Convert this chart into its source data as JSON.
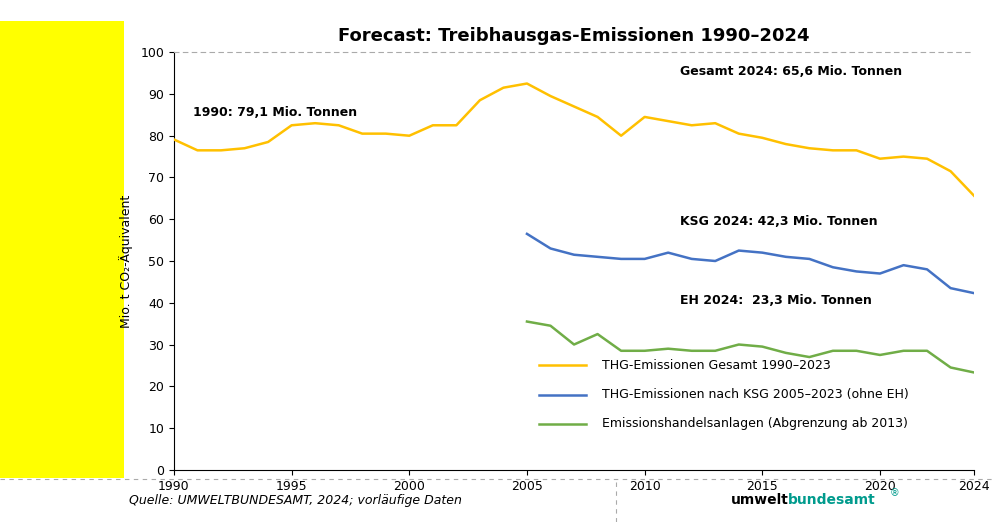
{
  "title": "Forecast: Treibhausgas-Emissionen 1990–2024",
  "ylabel": "Mio. t CO₂-Äquivalent",
  "source_text": "Quelle: UMWELTBUNDESAMT, 2024; vorläufige Daten",
  "gesamt_years": [
    1990,
    1991,
    1992,
    1993,
    1994,
    1995,
    1996,
    1997,
    1998,
    1999,
    2000,
    2001,
    2002,
    2003,
    2004,
    2005,
    2006,
    2007,
    2008,
    2009,
    2010,
    2011,
    2012,
    2013,
    2014,
    2015,
    2016,
    2017,
    2018,
    2019,
    2020,
    2021,
    2022,
    2023,
    2024
  ],
  "gesamt_values": [
    79.1,
    76.5,
    76.5,
    77.0,
    78.5,
    82.5,
    83.0,
    82.5,
    80.5,
    80.5,
    80.0,
    82.5,
    82.5,
    88.5,
    91.5,
    92.5,
    89.5,
    87.0,
    84.5,
    80.0,
    84.5,
    83.5,
    82.5,
    83.0,
    80.5,
    79.5,
    78.0,
    77.0,
    76.5,
    76.5,
    74.5,
    75.0,
    74.5,
    71.5,
    65.6
  ],
  "ksg_years": [
    2005,
    2006,
    2007,
    2008,
    2009,
    2010,
    2011,
    2012,
    2013,
    2014,
    2015,
    2016,
    2017,
    2018,
    2019,
    2020,
    2021,
    2022,
    2023,
    2024
  ],
  "ksg_values": [
    56.5,
    53.0,
    51.5,
    51.0,
    50.5,
    50.5,
    52.0,
    50.5,
    50.0,
    52.5,
    52.0,
    51.0,
    50.5,
    48.5,
    47.5,
    47.0,
    49.0,
    48.0,
    43.5,
    42.3
  ],
  "eh_years": [
    2005,
    2006,
    2007,
    2008,
    2009,
    2010,
    2011,
    2012,
    2013,
    2014,
    2015,
    2016,
    2017,
    2018,
    2019,
    2020,
    2021,
    2022,
    2023,
    2024
  ],
  "eh_values": [
    35.5,
    34.5,
    30.0,
    32.5,
    28.5,
    28.5,
    29.0,
    28.5,
    28.5,
    30.0,
    29.5,
    28.0,
    27.0,
    28.5,
    28.5,
    27.5,
    28.5,
    28.5,
    24.5,
    23.3
  ],
  "gesamt_color": "#FFC000",
  "ksg_color": "#4472C4",
  "eh_color": "#70AD47",
  "background_color": "#FFFFFF",
  "plot_bg_color": "#FFFFFF",
  "yellow_sidebar_color": "#FFFF00",
  "ylim": [
    0,
    100
  ],
  "xlim": [
    1990,
    2024
  ],
  "yticks": [
    0,
    10,
    20,
    30,
    40,
    50,
    60,
    70,
    80,
    90,
    100
  ],
  "xticks": [
    1990,
    1995,
    2000,
    2005,
    2010,
    2015,
    2020,
    2024
  ],
  "legend_items": [
    "THG-Emissionen Gesamt 1990–2023",
    "THG-Emissionen nach KSG 2005–2023 (ohne EH)",
    "Emissionshandelsanlagen (Abgrenzung ab 2013)"
  ],
  "annotation_1990": "1990: 79,1 Mio. Tonnen",
  "annotation_gesamt2024": "Gesamt 2024: 65,6 Mio. Tonnen",
  "annotation_ksg2024": "KSG 2024: 42,3 Mio. Tonnen",
  "annotation_eh2024": "EH 2024:  23,3 Mio. Tonnen",
  "title_fontsize": 13,
  "axis_fontsize": 9,
  "legend_fontsize": 9,
  "annotation_fontsize": 9,
  "line_width": 1.8,
  "footer_left": "Quelle: UMWELTBUNDESAMT, 2024; vorläufige Daten",
  "umwelt_text": "umwelt",
  "bundesamt_text": "bundesamt",
  "umwelt_color": "#000000",
  "bundesamt_color": "#009B8D",
  "superscript": "®"
}
